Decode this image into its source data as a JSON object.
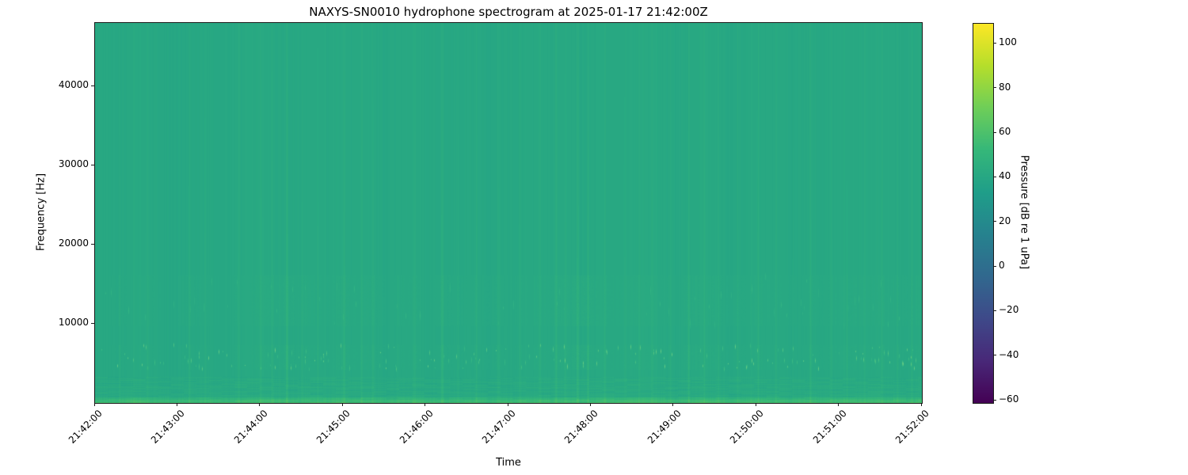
{
  "chart_data": {
    "type": "heatmap",
    "subtype": "spectrogram",
    "title": "NAXYS-SN0010 hydrophone spectrogram at 2025-01-17 21:42:00Z",
    "xlabel": "Time",
    "ylabel": "Frequency [Hz]",
    "x_tick_labels": [
      "21:42:00",
      "21:43:00",
      "21:44:00",
      "21:45:00",
      "21:46:00",
      "21:47:00",
      "21:48:00",
      "21:49:00",
      "21:50:00",
      "21:51:00",
      "21:52:00"
    ],
    "x_tick_rotation_deg": 45,
    "y_tick_values_hz": [
      10000,
      20000,
      30000,
      40000
    ],
    "y_tick_labels": [
      "10000",
      "20000",
      "30000",
      "40000"
    ],
    "y_range_hz": [
      0,
      48000
    ],
    "grid": false,
    "colorbar": {
      "label": "Pressure [dB re 1 uPa]",
      "tick_values": [
        100,
        80,
        60,
        40,
        20,
        0,
        -20,
        -40,
        -60
      ],
      "tick_labels": [
        "100",
        "80",
        "60",
        "40",
        "20",
        "0",
        "−20",
        "−40",
        "−60"
      ],
      "range_db": [
        -61,
        109
      ],
      "colormap": "viridis",
      "colormap_stops": [
        "#440154",
        "#482878",
        "#3e4989",
        "#31688e",
        "#26828e",
        "#1f9e89",
        "#35b779",
        "#6ece58",
        "#b5de2b",
        "#fde725"
      ]
    },
    "background_level_db": 41,
    "background_color_hex": "#28a883",
    "bottom_stripe_color_hex": "#47c172",
    "noise_texture": {
      "click_band_hz": [
        4300,
        7400
      ],
      "click_count": 170,
      "click_amp_db": [
        7,
        29
      ],
      "mid_band_hz": [
        9800,
        16200
      ],
      "mid_count": 60,
      "mid_amp_db": [
        3,
        9
      ],
      "low_textured_band_hz": [
        0,
        3400
      ],
      "surface_stripe_band_hz": [
        0,
        800
      ],
      "surface_stripe_level_db": 56
    },
    "events": [
      {
        "t": 0.03,
        "amp": 3.0
      },
      {
        "t": 0.063,
        "amp": 2.5
      },
      {
        "t": 0.114,
        "amp": 3.5
      },
      {
        "t": 0.133,
        "amp": 2.0
      },
      {
        "t": 0.173,
        "amp": 2.5
      },
      {
        "t": 0.2,
        "amp": 4.0
      },
      {
        "t": 0.214,
        "amp": 3.0
      },
      {
        "t": 0.232,
        "amp": 7.5
      },
      {
        "t": 0.25,
        "amp": 3.0
      },
      {
        "t": 0.269,
        "amp": 2.5
      },
      {
        "t": 0.301,
        "amp": 5.0
      },
      {
        "t": 0.322,
        "amp": 2.5
      },
      {
        "t": 0.336,
        "amp": 3.5
      },
      {
        "t": 0.365,
        "amp": 2.0
      },
      {
        "t": 0.386,
        "amp": 3.0
      },
      {
        "t": 0.42,
        "amp": 6.0
      },
      {
        "t": 0.439,
        "amp": 2.5
      },
      {
        "t": 0.461,
        "amp": 3.0
      },
      {
        "t": 0.488,
        "amp": 3.5
      },
      {
        "t": 0.513,
        "amp": 2.5
      },
      {
        "t": 0.537,
        "amp": 3.0
      },
      {
        "t": 0.557,
        "amp": 4.0
      },
      {
        "t": 0.568,
        "amp": 3.0
      },
      {
        "t": 0.583,
        "amp": 6.0
      },
      {
        "t": 0.596,
        "amp": 7.0
      },
      {
        "t": 0.616,
        "amp": 3.0
      },
      {
        "t": 0.641,
        "amp": 2.5
      },
      {
        "t": 0.658,
        "amp": 3.5
      },
      {
        "t": 0.673,
        "amp": 3.0
      },
      {
        "t": 0.695,
        "amp": 2.5
      },
      {
        "t": 0.717,
        "amp": 5.0
      },
      {
        "t": 0.737,
        "amp": 3.0
      },
      {
        "t": 0.754,
        "amp": 2.5
      },
      {
        "t": 0.777,
        "amp": 3.0
      },
      {
        "t": 0.802,
        "amp": 3.5
      },
      {
        "t": 0.823,
        "amp": 2.5
      },
      {
        "t": 0.844,
        "amp": 2.0
      },
      {
        "t": 0.865,
        "amp": 4.0
      },
      {
        "t": 0.89,
        "amp": 2.5
      },
      {
        "t": 0.909,
        "amp": 3.0
      },
      {
        "t": 0.93,
        "amp": 2.5
      },
      {
        "t": 0.951,
        "amp": 3.0
      },
      {
        "t": 0.97,
        "amp": 2.5
      },
      {
        "t": 0.988,
        "amp": 3.0
      }
    ]
  }
}
